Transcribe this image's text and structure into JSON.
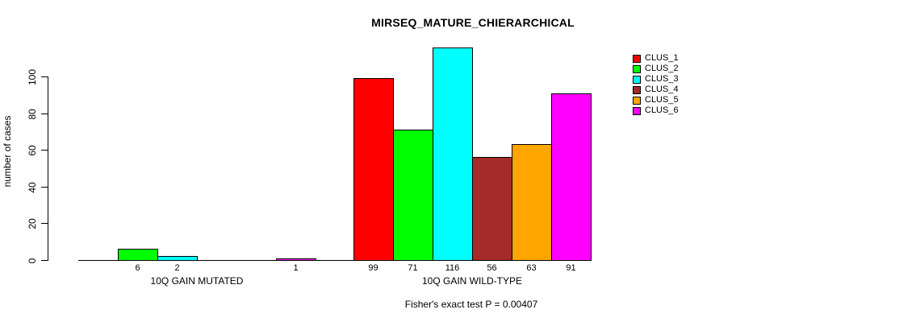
{
  "page": {
    "background": "#FFFFFF",
    "axis_color": "#000000"
  },
  "chart_data": {
    "type": "bar",
    "title": "MIRSEQ_MATURE_CHIERARCHICAL",
    "xlabel": "",
    "ylabel": "number of cases",
    "footnote": "Fisher's exact test P = 0.00407",
    "categories": [
      "10Q GAIN MUTATED",
      "10Q GAIN WILD-TYPE"
    ],
    "series": [
      {
        "name": "CLUS_1",
        "color": "#FF0000",
        "values": [
          0,
          99
        ]
      },
      {
        "name": "CLUS_2",
        "color": "#00FF00",
        "values": [
          6,
          71
        ]
      },
      {
        "name": "CLUS_3",
        "color": "#00FFFF",
        "values": [
          2,
          116
        ]
      },
      {
        "name": "CLUS_4",
        "color": "#A52A2A",
        "values": [
          0,
          56
        ]
      },
      {
        "name": "CLUS_5",
        "color": "#FFA500",
        "values": [
          0,
          63
        ]
      },
      {
        "name": "CLUS_6",
        "color": "#FF00FF",
        "values": [
          1,
          91
        ]
      }
    ],
    "bar_value_labels": {
      "group_1": [
        null,
        "6",
        "2",
        null,
        null,
        "1"
      ],
      "group_2": [
        "99",
        "71",
        "116",
        "56",
        "63",
        "91"
      ]
    },
    "yticks": [
      0,
      20,
      40,
      60,
      80,
      100
    ],
    "ylim": [
      0,
      116
    ],
    "grid": false,
    "legend_position": "topright",
    "legend_entries": [
      "CLUS_1",
      "CLUS_2",
      "CLUS_3",
      "CLUS_4",
      "CLUS_5",
      "CLUS_6"
    ],
    "show_zero_value_labels": false
  }
}
